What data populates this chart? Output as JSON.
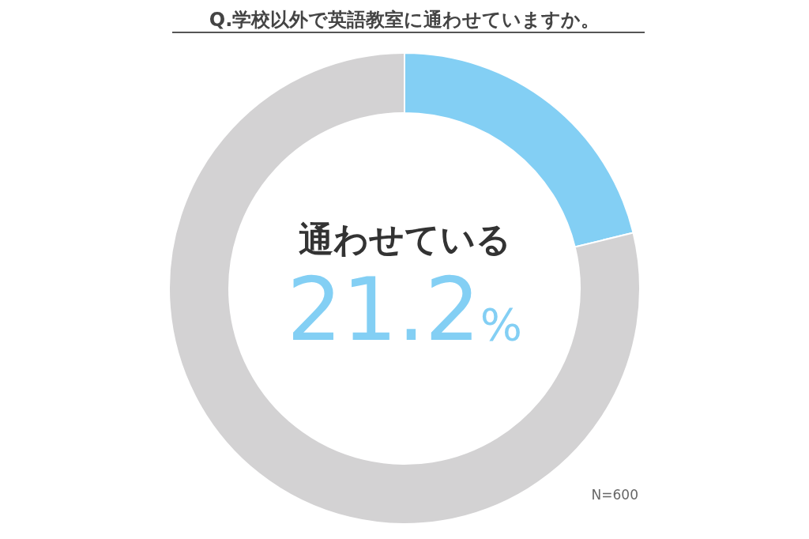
{
  "chart_data": {
    "type": "donut",
    "title": "Q.学校以外で英語教室に通わせていますか。",
    "categories": [
      "通わせている",
      null
    ],
    "values": [
      21.2,
      78.8
    ],
    "colors": [
      "#83cff4",
      "#d3d2d3"
    ],
    "value_labels": [
      "21.2%",
      null
    ],
    "annotations": [
      "N=600"
    ]
  }
}
